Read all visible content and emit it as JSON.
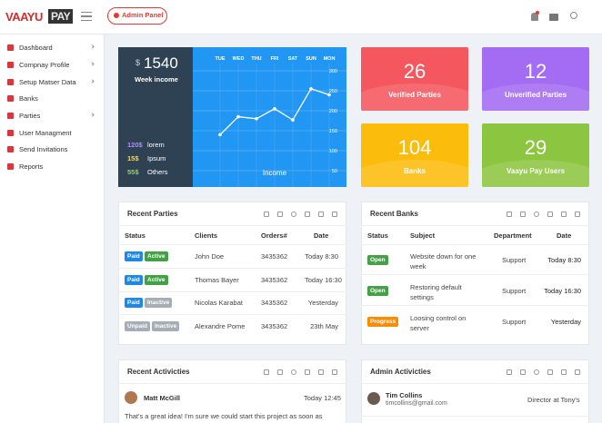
{
  "header": {
    "logo_main": "VAAYU",
    "logo_accent": "PAY",
    "admin_button": "Admin Panel"
  },
  "sidebar": {
    "items": [
      {
        "label": "Dashboard",
        "arrow": true
      },
      {
        "label": "Compnay Profile",
        "arrow": true
      },
      {
        "label": "Setup Matser Data",
        "arrow": true
      },
      {
        "label": "Banks",
        "arrow": false
      },
      {
        "label": "Parties",
        "arrow": true
      },
      {
        "label": "User Managment",
        "arrow": false
      },
      {
        "label": "Send Invitations",
        "arrow": false
      },
      {
        "label": "Reports",
        "arrow": false
      }
    ]
  },
  "income_widget": {
    "currency": "$",
    "amount": 1540,
    "label": "Week income",
    "legend": [
      {
        "value": "120$",
        "name": "lorem",
        "color": "#b388ff"
      },
      {
        "value": "15$",
        "name": "Ipsum",
        "color": "#ffd54f"
      },
      {
        "value": "55$",
        "name": "Others",
        "color": "#9ccc65"
      }
    ],
    "chart_data": {
      "type": "line",
      "title": "Income",
      "categories": [
        "TUE",
        "WED",
        "THU",
        "FRI",
        "SAT",
        "SUN",
        "MON"
      ],
      "values": [
        140,
        185,
        180,
        205,
        177,
        255,
        240
      ],
      "ylim": [
        50,
        300
      ],
      "yticks": [
        300,
        250,
        200,
        150,
        100,
        50
      ],
      "color": "#ffffff",
      "grid": true
    }
  },
  "stats": [
    {
      "value": 26,
      "label": "Verified Parties",
      "color": "#f4575e"
    },
    {
      "value": 12,
      "label": "Unverified Parties",
      "color": "#a46cf2"
    },
    {
      "value": 104,
      "label": "Banks",
      "color": "#fcbc0c"
    },
    {
      "value": 29,
      "label": "Vaayu Pay Users",
      "color": "#8cc540"
    }
  ],
  "recent_parties": {
    "title": "Recent Parties",
    "columns": [
      "Status",
      "Clients",
      "Orders#",
      "Date"
    ],
    "rows": [
      {
        "status": [
          {
            "text": "Paid",
            "color": "#1e88e5"
          },
          {
            "text": "Active",
            "color": "#43a047"
          }
        ],
        "client": "John Doe",
        "orders": "3435362",
        "date": "Today 8:30"
      },
      {
        "status": [
          {
            "text": "Paid",
            "color": "#1e88e5"
          },
          {
            "text": "Active",
            "color": "#43a047"
          }
        ],
        "client": "Thomas Bayer",
        "orders": "3435362",
        "date": "Today 16:30"
      },
      {
        "status": [
          {
            "text": "Paid",
            "color": "#1e88e5"
          },
          {
            "text": "Inactive",
            "color": "#a7adb5"
          }
        ],
        "client": "Nicolas Karabat",
        "orders": "3435362",
        "date": "Yesterday"
      },
      {
        "status": [
          {
            "text": "Unpaid",
            "color": "#a7adb5"
          },
          {
            "text": "Inactive",
            "color": "#a7adb5"
          }
        ],
        "client": "Alexandre Pome",
        "orders": "3435362",
        "date": "23th May"
      }
    ]
  },
  "recent_banks": {
    "title": "Recent Banks",
    "columns": [
      "Status",
      "Subject",
      "Department",
      "Date"
    ],
    "rows": [
      {
        "status": {
          "text": "Open",
          "color": "#43a047"
        },
        "subject": "Website down for one week",
        "department": "Support",
        "date": "Today 8:30"
      },
      {
        "status": {
          "text": "Open",
          "color": "#43a047"
        },
        "subject": "Restoring default settings",
        "department": "Support",
        "date": "Today 16:30"
      },
      {
        "status": {
          "text": "Progress",
          "color": "#fb8c00"
        },
        "subject": "Loosing control on server",
        "department": "Support",
        "date": "Yesterday"
      }
    ]
  },
  "recent_activities": {
    "title": "Recent Activicties",
    "name": "Matt McGill",
    "time": "Today 12:45",
    "text": "That's a great idea! I'm sure we could start this project as soon as"
  },
  "admin_activities": {
    "title": "Admin Activicties",
    "name": "Tim Collins",
    "email": "timcollins@gmail.com",
    "role": "Director at Tony's"
  }
}
